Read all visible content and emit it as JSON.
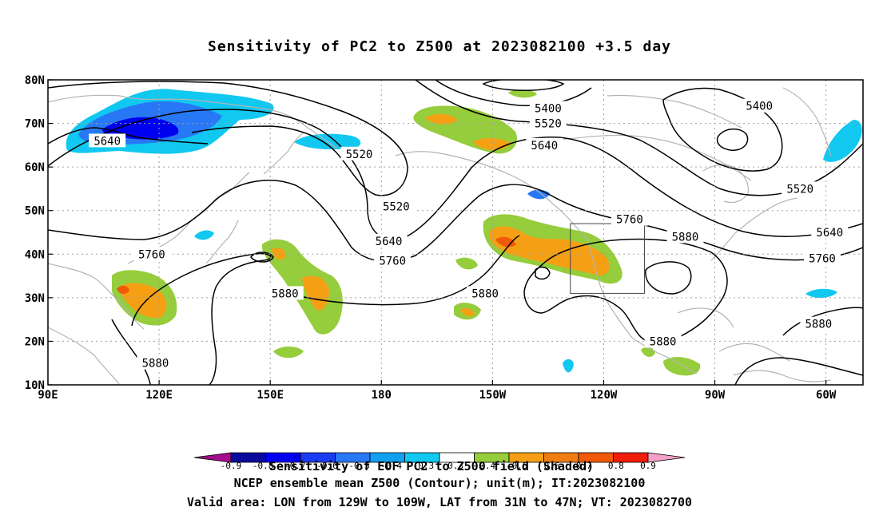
{
  "title": "Sensitivity of PC2 to Z500 at 2023082100 +3.5 day",
  "lat_labels": [
    "80N",
    "70N",
    "60N",
    "50N",
    "40N",
    "30N",
    "20N",
    "10N"
  ],
  "lon_labels": [
    "90E",
    "120E",
    "150E",
    "180",
    "150W",
    "120W",
    "90W",
    "60W"
  ],
  "contour_labels": [
    {
      "text": "5640",
      "lon": 106,
      "lat": 66
    },
    {
      "text": "5520",
      "lon": 174,
      "lat": 63
    },
    {
      "text": "5400",
      "lon": 225,
      "lat": 73.5
    },
    {
      "text": "5520",
      "lon": 225,
      "lat": 70
    },
    {
      "text": "5640",
      "lon": 224,
      "lat": 65
    },
    {
      "text": "5400",
      "lon": 282,
      "lat": 74
    },
    {
      "text": "5520",
      "lon": 293,
      "lat": 55
    },
    {
      "text": "5520",
      "lon": 184,
      "lat": 51
    },
    {
      "text": "5640",
      "lon": 182,
      "lat": 43
    },
    {
      "text": "5760",
      "lon": 183,
      "lat": 38.5
    },
    {
      "text": "5760",
      "lon": 247,
      "lat": 48
    },
    {
      "text": "5880",
      "lon": 262,
      "lat": 44
    },
    {
      "text": "5640",
      "lon": 301,
      "lat": 45
    },
    {
      "text": "5760",
      "lon": 299,
      "lat": 39
    },
    {
      "text": "5760",
      "lon": 118,
      "lat": 40
    },
    {
      "text": "5880",
      "lon": 154,
      "lat": 31
    },
    {
      "text": "5880",
      "lon": 208,
      "lat": 31
    },
    {
      "text": "5880",
      "lon": 119,
      "lat": 15
    },
    {
      "text": "5880",
      "lon": 256,
      "lat": 20
    },
    {
      "text": "5880",
      "lon": 298,
      "lat": 24
    }
  ],
  "colorbar": {
    "labels": [
      "-0.9",
      "-0.8",
      "-0.7",
      "-0.6",
      "-0.5",
      "-0.4",
      "-0.3",
      "0.3",
      "0.4",
      "0.5",
      "0.6",
      "0.7",
      "0.8",
      "0.9"
    ],
    "colors": [
      "#a50d8c",
      "#0a0a9c",
      "#0000f0",
      "#1a3cf5",
      "#2878f5",
      "#14a0f0",
      "#10c8f0",
      "#ffffff",
      "#96cd3c",
      "#f5a014",
      "#f07d14",
      "#f05a0a",
      "#f01e0a",
      "#f5a0c8"
    ]
  },
  "colorbar_caption": "Sensitivity of EOF PC2 to Z500 field (Shaded)",
  "caption_line2": "NCEP ensemble mean Z500 (Contour); unit(m); IT:2023082100",
  "caption_line3": "Valid area: LON from 129W to 109W, LAT from 31N to 47N; VT: 2023082700",
  "valid_box": {
    "lon_min": 231,
    "lon_max": 251,
    "lat_min": 31,
    "lat_max": 47
  },
  "colors": {
    "contour": "#000000",
    "coast": "#b4b4b4",
    "grid": "#a0a0a0",
    "pos_green": "#96cd3c",
    "pos_orange": "#f5a014",
    "pos_red": "#f05a0a",
    "neg_cyan": "#10c8f0",
    "neg_light_blue": "#2878f5",
    "neg_blue": "#0000f0"
  }
}
